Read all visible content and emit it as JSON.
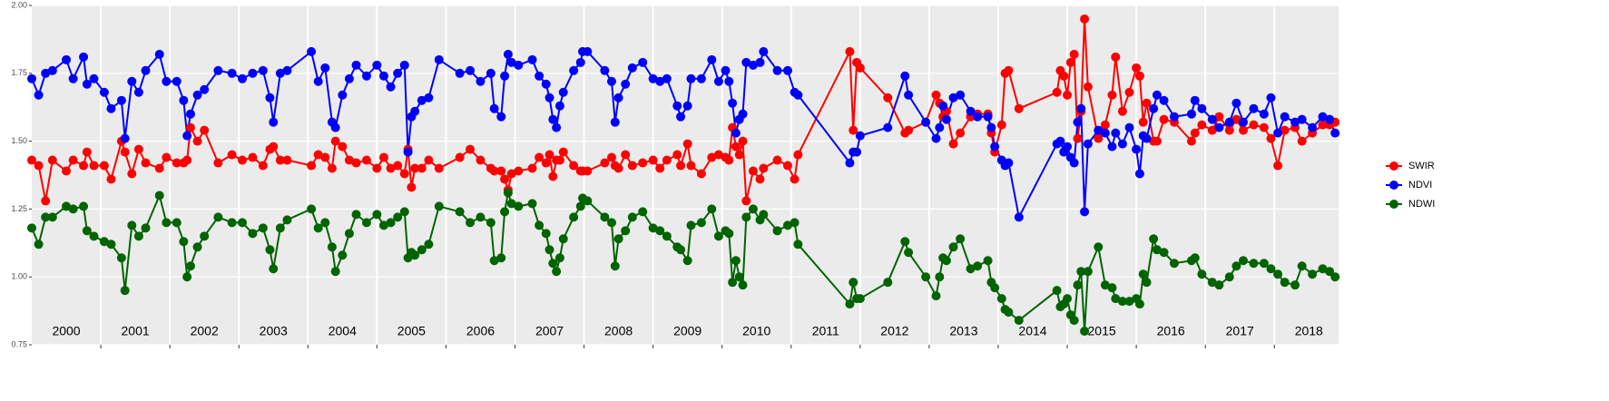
{
  "chart_data": {
    "type": "line",
    "x": [
      2000,
      2000.1,
      2000.2,
      2000.3,
      2000.5,
      2000.6,
      2000.75,
      2000.8,
      2000.9,
      2001.05,
      2001.15,
      2001.3,
      2001.35,
      2001.45,
      2001.55,
      2001.65,
      2001.85,
      2001.95,
      2002.1,
      2002.2,
      2002.25,
      2002.3,
      2002.4,
      2002.5,
      2002.7,
      2002.9,
      2003.05,
      2003.2,
      2003.35,
      2003.45,
      2003.5,
      2003.6,
      2003.7,
      2004.05,
      2004.15,
      2004.25,
      2004.35,
      2004.4,
      2004.5,
      2004.6,
      2004.7,
      2004.85,
      2005,
      2005.1,
      2005.2,
      2005.3,
      2005.4,
      2005.45,
      2005.5,
      2005.55,
      2005.65,
      2005.75,
      2005.9,
      2006.2,
      2006.35,
      2006.5,
      2006.65,
      2006.7,
      2006.8,
      2006.85,
      2006.9,
      2006.95,
      2007.05,
      2007.25,
      2007.35,
      2007.45,
      2007.5,
      2007.55,
      2007.6,
      2007.65,
      2007.7,
      2007.85,
      2007.95,
      2007.98,
      2008.05,
      2008.3,
      2008.4,
      2008.45,
      2008.5,
      2008.6,
      2008.7,
      2008.85,
      2009,
      2009.1,
      2009.2,
      2009.35,
      2009.4,
      2009.5,
      2009.55,
      2009.7,
      2009.85,
      2009.95,
      2010.05,
      2010.1,
      2010.15,
      2010.2,
      2010.25,
      2010.3,
      2010.35,
      2010.45,
      2010.55,
      2010.6,
      2010.8,
      2010.95,
      2011.05,
      2011.1,
      2011.85,
      2011.9,
      2011.95,
      2012,
      2012.4,
      2012.65,
      2012.7,
      2012.95,
      2013.1,
      2013.15,
      2013.2,
      2013.25,
      2013.35,
      2013.45,
      2013.6,
      2013.7,
      2013.85,
      2013.9,
      2013.95,
      2014.05,
      2014.1,
      2014.15,
      2014.3,
      2014.85,
      2014.9,
      2014.95,
      2015,
      2015.05,
      2015.1,
      2015.15,
      2015.2,
      2015.25,
      2015.3,
      2015.45,
      2015.55,
      2015.65,
      2015.7,
      2015.8,
      2015.9,
      2016,
      2016.05,
      2016.1,
      2016.15,
      2016.25,
      2016.3,
      2016.4,
      2016.55,
      2016.8,
      2016.85,
      2016.95,
      2017.1,
      2017.2,
      2017.35,
      2017.45,
      2017.55,
      2017.7,
      2017.85,
      2017.95,
      2018.05,
      2018.15,
      2018.3,
      2018.4,
      2018.55,
      2018.7,
      2018.8,
      2018.88
    ],
    "series": [
      {
        "name": "SWIR",
        "color": "#ff0000",
        "values": [
          1.43,
          1.41,
          1.28,
          1.43,
          1.39,
          1.43,
          1.41,
          1.46,
          1.41,
          1.41,
          1.36,
          1.5,
          1.46,
          1.38,
          1.47,
          1.42,
          1.4,
          1.44,
          1.42,
          1.42,
          1.43,
          1.55,
          1.5,
          1.54,
          1.42,
          1.45,
          1.43,
          1.44,
          1.41,
          1.47,
          1.48,
          1.43,
          1.43,
          1.41,
          1.45,
          1.44,
          1.4,
          1.5,
          1.48,
          1.43,
          1.42,
          1.43,
          1.4,
          1.44,
          1.4,
          1.41,
          1.38,
          1.47,
          1.33,
          1.4,
          1.4,
          1.43,
          1.4,
          1.44,
          1.47,
          1.43,
          1.4,
          1.39,
          1.39,
          1.36,
          1.32,
          1.38,
          1.39,
          1.4,
          1.44,
          1.42,
          1.45,
          1.37,
          1.43,
          1.43,
          1.46,
          1.41,
          1.39,
          1.39,
          1.39,
          1.42,
          1.44,
          1.41,
          1.4,
          1.45,
          1.41,
          1.42,
          1.43,
          1.4,
          1.43,
          1.45,
          1.41,
          1.49,
          1.41,
          1.38,
          1.44,
          1.45,
          1.44,
          1.43,
          1.55,
          1.48,
          1.45,
          1.5,
          1.28,
          1.39,
          1.36,
          1.4,
          1.43,
          1.41,
          1.36,
          1.45,
          1.83,
          1.54,
          1.79,
          1.77,
          1.66,
          1.53,
          1.54,
          1.57,
          1.67,
          1.64,
          1.59,
          1.61,
          1.49,
          1.53,
          1.59,
          1.6,
          1.6,
          1.53,
          1.46,
          1.56,
          1.75,
          1.76,
          1.62,
          1.68,
          1.76,
          1.74,
          1.67,
          1.79,
          1.82,
          1.51,
          1.61,
          1.95,
          1.7,
          1.51,
          1.56,
          1.67,
          1.81,
          1.61,
          1.68,
          1.77,
          1.74,
          1.57,
          1.64,
          1.5,
          1.5,
          1.58,
          1.57,
          1.5,
          1.53,
          1.56,
          1.54,
          1.59,
          1.54,
          1.58,
          1.54,
          1.56,
          1.55,
          1.51,
          1.41,
          1.54,
          1.55,
          1.5,
          1.53,
          1.56,
          1.56,
          1.57
        ]
      },
      {
        "name": "NDVI",
        "color": "#0000ff",
        "values": [
          1.73,
          1.67,
          1.75,
          1.76,
          1.8,
          1.73,
          1.81,
          1.71,
          1.73,
          1.68,
          1.62,
          1.65,
          1.51,
          1.72,
          1.68,
          1.76,
          1.82,
          1.72,
          1.72,
          1.65,
          1.52,
          1.6,
          1.67,
          1.69,
          1.76,
          1.75,
          1.73,
          1.75,
          1.76,
          1.66,
          1.57,
          1.75,
          1.76,
          1.83,
          1.72,
          1.77,
          1.57,
          1.55,
          1.67,
          1.73,
          1.78,
          1.74,
          1.78,
          1.74,
          1.7,
          1.75,
          1.78,
          1.46,
          1.59,
          1.61,
          1.65,
          1.66,
          1.8,
          1.75,
          1.76,
          1.72,
          1.75,
          1.62,
          1.59,
          1.74,
          1.82,
          1.79,
          1.78,
          1.8,
          1.74,
          1.71,
          1.66,
          1.58,
          1.55,
          1.63,
          1.68,
          1.76,
          1.79,
          1.83,
          1.83,
          1.76,
          1.72,
          1.57,
          1.66,
          1.71,
          1.77,
          1.79,
          1.73,
          1.72,
          1.73,
          1.63,
          1.59,
          1.63,
          1.73,
          1.73,
          1.8,
          1.72,
          1.76,
          1.72,
          1.64,
          1.53,
          1.58,
          1.6,
          1.79,
          1.78,
          1.79,
          1.83,
          1.76,
          1.76,
          1.68,
          1.67,
          1.42,
          1.46,
          1.46,
          1.52,
          1.55,
          1.74,
          1.67,
          1.57,
          1.51,
          1.55,
          1.63,
          1.58,
          1.66,
          1.67,
          1.61,
          1.59,
          1.59,
          1.55,
          1.48,
          1.43,
          1.41,
          1.42,
          1.22,
          1.49,
          1.5,
          1.46,
          1.48,
          1.44,
          1.42,
          1.57,
          1.62,
          1.24,
          1.49,
          1.54,
          1.53,
          1.48,
          1.53,
          1.49,
          1.55,
          1.47,
          1.38,
          1.52,
          1.51,
          1.62,
          1.67,
          1.65,
          1.59,
          1.6,
          1.65,
          1.62,
          1.58,
          1.55,
          1.57,
          1.64,
          1.57,
          1.62,
          1.6,
          1.66,
          1.53,
          1.59,
          1.57,
          1.58,
          1.55,
          1.59,
          1.58,
          1.53
        ]
      },
      {
        "name": "NDWI",
        "color": "#006400",
        "values": [
          1.18,
          1.12,
          1.22,
          1.22,
          1.26,
          1.25,
          1.26,
          1.17,
          1.15,
          1.13,
          1.12,
          1.07,
          0.95,
          1.19,
          1.15,
          1.18,
          1.3,
          1.2,
          1.2,
          1.13,
          1.0,
          1.04,
          1.11,
          1.15,
          1.22,
          1.2,
          1.2,
          1.16,
          1.18,
          1.1,
          1.03,
          1.18,
          1.21,
          1.25,
          1.18,
          1.2,
          1.11,
          1.02,
          1.08,
          1.16,
          1.23,
          1.2,
          1.23,
          1.19,
          1.2,
          1.22,
          1.24,
          1.07,
          1.09,
          1.08,
          1.1,
          1.12,
          1.26,
          1.24,
          1.2,
          1.22,
          1.2,
          1.06,
          1.07,
          1.24,
          1.31,
          1.27,
          1.26,
          1.27,
          1.19,
          1.16,
          1.1,
          1.05,
          1.02,
          1.07,
          1.14,
          1.22,
          1.26,
          1.29,
          1.28,
          1.22,
          1.2,
          1.04,
          1.14,
          1.17,
          1.22,
          1.24,
          1.18,
          1.17,
          1.15,
          1.11,
          1.1,
          1.06,
          1.19,
          1.2,
          1.25,
          1.15,
          1.17,
          1.16,
          0.98,
          1.06,
          1.0,
          0.97,
          1.22,
          1.25,
          1.21,
          1.23,
          1.17,
          1.19,
          1.2,
          1.12,
          0.9,
          0.98,
          0.92,
          0.92,
          0.98,
          1.13,
          1.09,
          1.0,
          0.93,
          1.0,
          1.07,
          1.06,
          1.11,
          1.14,
          1.03,
          1.04,
          1.06,
          0.98,
          0.96,
          0.92,
          0.88,
          0.87,
          0.84,
          0.95,
          0.89,
          0.9,
          0.92,
          0.86,
          0.84,
          0.97,
          1.02,
          0.8,
          1.02,
          1.11,
          0.97,
          0.96,
          0.92,
          0.91,
          0.91,
          0.92,
          0.9,
          1.01,
          0.98,
          1.14,
          1.1,
          1.09,
          1.05,
          1.06,
          1.07,
          1.01,
          0.98,
          0.97,
          1.0,
          1.04,
          1.06,
          1.05,
          1.05,
          1.03,
          1.01,
          0.98,
          0.97,
          1.04,
          1.01,
          1.03,
          1.02,
          1.0
        ]
      }
    ],
    "xlim": [
      2000,
      2018.93
    ],
    "xticks": [
      2001,
      2002,
      2003,
      2004,
      2005,
      2006,
      2007,
      2008,
      2009,
      2010,
      2011,
      2012,
      2013,
      2014,
      2015,
      2016,
      2017,
      2018
    ],
    "year_labels": [
      {
        "value": 2000.5,
        "label": "2000"
      },
      {
        "value": 2001.5,
        "label": "2001"
      },
      {
        "value": 2002.5,
        "label": "2002"
      },
      {
        "value": 2003.5,
        "label": "2003"
      },
      {
        "value": 2004.5,
        "label": "2004"
      },
      {
        "value": 2005.5,
        "label": "2005"
      },
      {
        "value": 2006.5,
        "label": "2006"
      },
      {
        "value": 2007.5,
        "label": "2007"
      },
      {
        "value": 2008.5,
        "label": "2008"
      },
      {
        "value": 2009.5,
        "label": "2009"
      },
      {
        "value": 2010.5,
        "label": "2010"
      },
      {
        "value": 2011.5,
        "label": "2011"
      },
      {
        "value": 2012.5,
        "label": "2012"
      },
      {
        "value": 2013.5,
        "label": "2013"
      },
      {
        "value": 2014.5,
        "label": "2014"
      },
      {
        "value": 2015.5,
        "label": "2015"
      },
      {
        "value": 2016.5,
        "label": "2016"
      },
      {
        "value": 2017.5,
        "label": "2017"
      },
      {
        "value": 2018.5,
        "label": "2018"
      }
    ],
    "ylim": [
      0.75,
      2.0
    ],
    "yticks": [
      0.75,
      {
        "value": 1.0,
        "label": "1.00"
      },
      1.25,
      {
        "value": 1.5,
        "label": "1.50"
      },
      1.75,
      {
        "value": 2.0,
        "label": "2.00"
      }
    ],
    "grid": true,
    "legend": "right"
  }
}
